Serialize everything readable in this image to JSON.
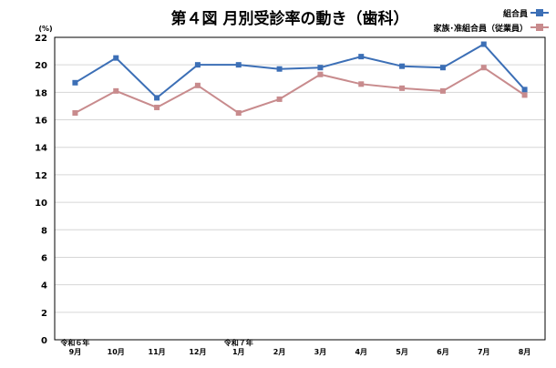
{
  "chart_data": {
    "type": "line",
    "title": "第４図 月別受診率の動き（歯科）",
    "ylabel": "(%)",
    "xlabel": "",
    "ylim": [
      0,
      22
    ],
    "yticks": [
      0,
      2,
      4,
      6,
      8,
      10,
      12,
      14,
      16,
      18,
      20,
      22
    ],
    "grid": true,
    "legend_position": "top-right",
    "categories": [
      "9月",
      "10月",
      "11月",
      "12月",
      "1月",
      "2月",
      "3月",
      "4月",
      "5月",
      "6月",
      "7月",
      "8月"
    ],
    "era_labels": [
      {
        "index": 0,
        "text": "令和６年"
      },
      {
        "index": 4,
        "text": "令和７年"
      }
    ],
    "series": [
      {
        "name": "組合員",
        "color": "#3c6fb6",
        "values": [
          18.7,
          20.5,
          17.6,
          20.0,
          20.0,
          19.7,
          19.8,
          20.6,
          19.9,
          19.8,
          21.5,
          18.2
        ]
      },
      {
        "name": "家族･准組合員（従業員）",
        "color": "#c88b8d",
        "values": [
          16.5,
          18.1,
          16.9,
          18.5,
          16.5,
          17.5,
          19.3,
          18.6,
          18.3,
          18.1,
          19.8,
          17.8
        ]
      }
    ]
  }
}
